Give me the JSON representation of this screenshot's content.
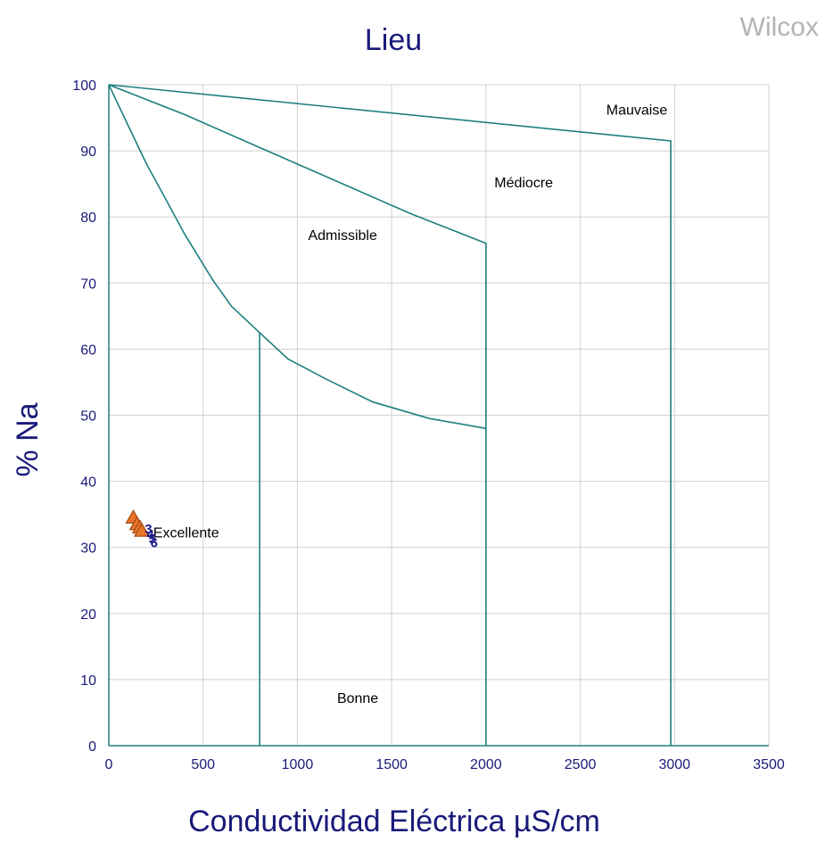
{
  "brand": "Wilcox",
  "chart_data": {
    "type": "scatter",
    "title": "Lieu",
    "xlabel": "Conductividad Eléctrica µS/cm",
    "ylabel": "% Na",
    "xlim": [
      0,
      3500
    ],
    "ylim": [
      0,
      100
    ],
    "x_ticks": [
      "0",
      "500",
      "1000",
      "1500",
      "2000",
      "2500",
      "3000",
      "3500"
    ],
    "y_ticks": [
      "0",
      "10",
      "20",
      "30",
      "40",
      "50",
      "60",
      "70",
      "80",
      "90",
      "100"
    ],
    "grid": true,
    "region_labels": [
      {
        "text": "Mauvaise",
        "x": 2800,
        "y": 95.5
      },
      {
        "text": "Médiocre",
        "x": 2200,
        "y": 84.5
      },
      {
        "text": "Admissible",
        "x": 1240,
        "y": 76.5
      },
      {
        "text": "Excellente",
        "x": 410,
        "y": 31.5
      },
      {
        "text": "Bonne",
        "x": 1320,
        "y": 6.5
      }
    ],
    "boundaries": [
      {
        "name": "upper",
        "points": [
          [
            0,
            100
          ],
          [
            2980,
            91.5
          ],
          [
            2980,
            0
          ]
        ]
      },
      {
        "name": "middle",
        "points": [
          [
            0,
            100
          ],
          [
            400,
            95.5
          ],
          [
            800,
            90.5
          ],
          [
            1200,
            85.5
          ],
          [
            1600,
            80.5
          ],
          [
            2000,
            76
          ],
          [
            2000,
            0
          ]
        ]
      },
      {
        "name": "lower-curve",
        "points": [
          [
            0,
            100
          ],
          [
            100,
            94
          ],
          [
            200,
            88
          ],
          [
            300,
            82.8
          ],
          [
            400,
            77.5
          ],
          [
            550,
            70.5
          ],
          [
            650,
            66.5
          ],
          [
            800,
            62.5
          ],
          [
            950,
            58.5
          ],
          [
            1150,
            55.5
          ],
          [
            1400,
            52
          ],
          [
            1700,
            49.5
          ],
          [
            2000,
            48
          ]
        ]
      },
      {
        "name": "bonne-divider",
        "points": [
          [
            800,
            62.5
          ],
          [
            800,
            0
          ]
        ]
      }
    ],
    "series": [
      {
        "marker": "triangle",
        "color": "#e8752a",
        "points": [
          [
            130,
            34.5
          ],
          [
            150,
            33.5
          ],
          [
            165,
            33.0
          ],
          [
            175,
            32.5
          ]
        ]
      },
      {
        "marker": "digit",
        "color": "#1a1a8c",
        "points": [
          {
            "x": 210,
            "y": 32.8,
            "label": "3"
          },
          {
            "x": 220,
            "y": 32.0,
            "label": "4"
          },
          {
            "x": 230,
            "y": 31.3,
            "label": "5"
          },
          {
            "x": 240,
            "y": 30.7,
            "label": "6"
          }
        ]
      }
    ]
  }
}
